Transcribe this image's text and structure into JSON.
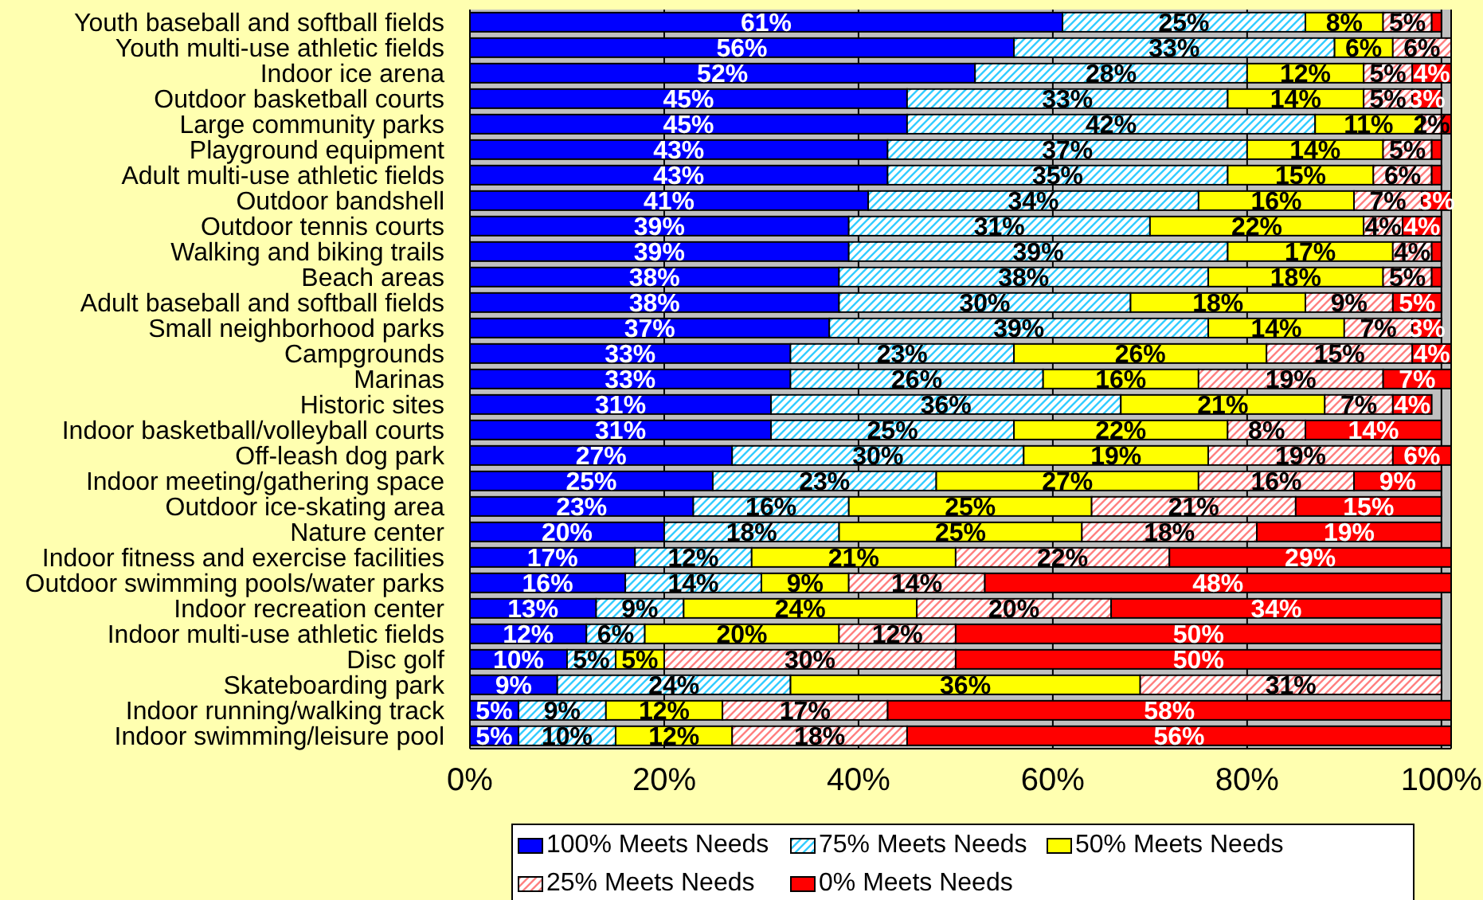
{
  "chart_data": {
    "type": "bar",
    "orientation": "horizontal",
    "stacked": true,
    "categories": [
      "Youth baseball and softball fields",
      "Youth multi-use athletic fields",
      "Indoor ice arena",
      "Outdoor basketball courts",
      "Large community parks",
      "Playground equipment",
      "Adult multi-use athletic fields",
      "Outdoor bandshell",
      "Outdoor tennis courts",
      "Walking and biking trails",
      "Beach areas",
      "Adult baseball and softball fields",
      "Small neighborhood parks",
      "Campgrounds",
      "Marinas",
      "Historic sites",
      "Indoor basketball/volleyball courts",
      "Off-leash dog park",
      "Indoor meeting/gathering space",
      "Outdoor ice-skating area",
      "Nature center",
      "Indoor fitness and exercise facilities",
      "Outdoor swimming pools/water parks",
      "Indoor recreation center",
      "Indoor multi-use athletic fields",
      "Disc golf",
      "Skateboarding park",
      "Indoor running/walking track",
      "Indoor swimming/leisure pool"
    ],
    "series": [
      {
        "name": "100% Meets Needs",
        "color": "#0000ff",
        "values": [
          61,
          56,
          52,
          45,
          45,
          43,
          43,
          41,
          39,
          39,
          38,
          38,
          37,
          33,
          33,
          31,
          31,
          27,
          25,
          23,
          20,
          17,
          16,
          13,
          12,
          10,
          9,
          5,
          5
        ],
        "value_labels": [
          "61%",
          "56%",
          "52%",
          "45%",
          "45%",
          "43%",
          "43%",
          "41%",
          "39%",
          "39%",
          "38%",
          "38%",
          "37%",
          "33%",
          "33%",
          "31%",
          "31%",
          "27%",
          "25%",
          "23%",
          "20%",
          "17%",
          "16%",
          "13%",
          "12%",
          "10%",
          "9%",
          "5%",
          "5%"
        ]
      },
      {
        "name": "75% Meets Needs",
        "color": "#33ccff",
        "values": [
          25,
          33,
          28,
          33,
          42,
          37,
          35,
          34,
          31,
          39,
          38,
          30,
          39,
          23,
          26,
          36,
          25,
          30,
          23,
          16,
          18,
          12,
          14,
          9,
          6,
          5,
          24,
          9,
          10
        ],
        "value_labels": [
          "25%",
          "33%",
          "28%",
          "33%",
          "42%",
          "37%",
          "35%",
          "34%",
          "31%",
          "39%",
          "38%",
          "30%",
          "39%",
          "23%",
          "26%",
          "36%",
          "25%",
          "30%",
          "23%",
          "16%",
          "18%",
          "12%",
          "14%",
          "9%",
          "6%",
          "5%",
          "24%",
          "9%",
          "10%"
        ]
      },
      {
        "name": "50% Meets Needs",
        "color": "#ffff00",
        "values": [
          8,
          6,
          12,
          14,
          11,
          14,
          15,
          16,
          22,
          17,
          18,
          18,
          14,
          26,
          16,
          21,
          22,
          19,
          27,
          25,
          25,
          21,
          9,
          24,
          20,
          5,
          36,
          12,
          12
        ],
        "value_labels": [
          "8%",
          "6%",
          "12%",
          "14%",
          "11%",
          "14%",
          "15%",
          "16%",
          "22%",
          "17%",
          "18%",
          "18%",
          "14%",
          "26%",
          "16%",
          "21%",
          "22%",
          "19%",
          "27%",
          "25%",
          "25%",
          "21%",
          "9%",
          "24%",
          "20%",
          "5%",
          "36%",
          "12%",
          "12%"
        ]
      },
      {
        "name": "25% Meets Needs",
        "color": "#ff8080",
        "values": [
          5,
          6,
          5,
          5,
          2,
          5,
          6,
          7,
          4,
          4,
          5,
          9,
          7,
          15,
          19,
          7,
          8,
          19,
          16,
          21,
          18,
          22,
          14,
          20,
          12,
          30,
          31,
          17,
          18
        ],
        "value_labels": [
          "5%",
          "6%",
          "5%",
          "5%",
          "2%",
          "5%",
          "6%",
          "7%",
          "4%",
          "4%",
          "5%",
          "9%",
          "7%",
          "15%",
          "19%",
          "7%",
          "8%",
          "19%",
          "16%",
          "21%",
          "18%",
          "22%",
          "14%",
          "20%",
          "12%",
          "30%",
          "31%",
          "17%",
          "18%"
        ]
      },
      {
        "name": "0% Meets Needs",
        "color": "#ff0000",
        "values": [
          1,
          null,
          4,
          3,
          1,
          1,
          1,
          3,
          4,
          1,
          1,
          5,
          3,
          4,
          7,
          4,
          14,
          6,
          9,
          15,
          19,
          29,
          48,
          34,
          50,
          50,
          null,
          58,
          56
        ],
        "value_labels": [
          null,
          null,
          "4%",
          "3%",
          null,
          null,
          null,
          "3%",
          "4%",
          null,
          null,
          "5%",
          "3%",
          "4%",
          "7%",
          "4%",
          "14%",
          "6%",
          "9%",
          "15%",
          "19%",
          "29%",
          "48%",
          "34%",
          "50%",
          "50%",
          null,
          "58%",
          "56%"
        ]
      }
    ],
    "xlim": [
      0,
      101
    ],
    "xticks": [
      {
        "value": 0,
        "label": "0%"
      },
      {
        "value": 20,
        "label": "20%"
      },
      {
        "value": 40,
        "label": "40%"
      },
      {
        "value": 60,
        "label": "60%"
      },
      {
        "value": 80,
        "label": "80%"
      },
      {
        "value": 100,
        "label": "100%"
      }
    ],
    "grid": "x",
    "legend": "bottom"
  }
}
